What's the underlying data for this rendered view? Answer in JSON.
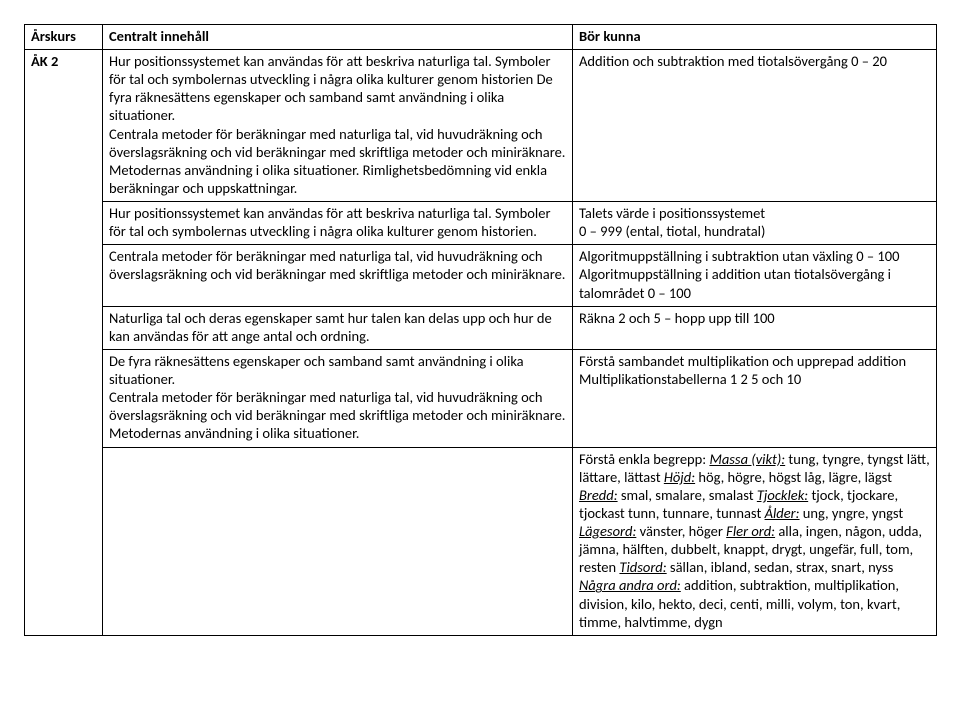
{
  "headers": {
    "col1": "Årskurs",
    "col2": "Centralt innehåll",
    "col3": "Bör kunna"
  },
  "grade": "ÅK 2",
  "rows": {
    "r1": {
      "content": "Hur positionssystemet kan användas för att beskriva naturliga tal. Symboler för tal och symbolernas utveckling i några olika kulturer genom historien De fyra räknesättens egenskaper och samband samt användning i olika situationer.\nCentrala metoder för beräkningar med naturliga tal, vid huvudräkning och överslagsräkning och vid beräkningar med skriftliga metoder och miniräknare. Metodernas användning i olika situationer. Rimlighetsbedömning vid enkla beräkningar och uppskattningar.",
      "goal": "Addition och subtraktion med tiotalsövergång 0 – 20"
    },
    "r2": {
      "content": "Hur positionssystemet kan användas för att beskriva naturliga tal. Symboler för tal och symbolernas utveckling i några olika kulturer genom historien.",
      "goal": "Talets värde i positionssystemet\n0 – 999 (ental, tiotal, hundratal)"
    },
    "r3": {
      "content": "Centrala metoder för beräkningar med naturliga tal, vid huvudräkning och överslagsräkning och vid beräkningar med skriftliga metoder och miniräknare.",
      "goal": "Algoritmuppställning i subtraktion utan växling 0 – 100  Algoritmuppställning i addition utan tiotalsövergång i talområdet 0 – 100"
    },
    "r4": {
      "content": "Naturliga tal och deras egenskaper samt hur talen kan delas upp och hur de kan användas för att ange antal och ordning.",
      "goal": "Räkna 2 och 5 – hopp upp till 100"
    },
    "r5": {
      "content": "De fyra räknesättens egenskaper och samband samt användning i olika situationer.\nCentrala metoder för beräkningar med naturliga tal, vid huvudräkning och överslagsräkning och vid beräkningar med skriftliga metoder och miniräknare. Metodernas användning i olika situationer.",
      "goal": "Förstå sambandet multiplikation och upprepad addition\nMultiplikationstabellerna 1 2 5 och 10"
    },
    "r6": {
      "intro": "Förstå enkla begrepp: ",
      "massa_label": "Massa (vikt):",
      "massa_text": " tung, tyngre, tyngst lätt, lättare, lättast ",
      "hojd_label": "Höjd:",
      "hojd_text": " hög, högre, högst låg, lägre, lägst ",
      "bredd_label": "Bredd:",
      "bredd_text": " smal, smalare, smalast ",
      "tjocklek_label": "Tjocklek:",
      "tjocklek_text": " tjock, tjockare, tjockast tunn, tunnare, tunnast ",
      "alder_label": "Ålder:",
      "alder_text": " ung, yngre, yngst ",
      "lages_label": "Lägesord:",
      "lages_text": " vänster, höger ",
      "fler_label": "Fler ord:",
      "fler_text": " alla, ingen, någon, udda, jämna, hälften, dubbelt, knappt, drygt, ungefär, full, tom, resten ",
      "tids_label": "Tidsord:",
      "tids_text": " sällan, ibland, sedan, strax, snart, nyss ",
      "andra_label": "Några andra ord:",
      "andra_text": " addition, subtraktion, multiplikation, division, kilo, hekto, deci, centi, milli, volym, ton, kvart, timme, halvtimme, dygn"
    }
  }
}
